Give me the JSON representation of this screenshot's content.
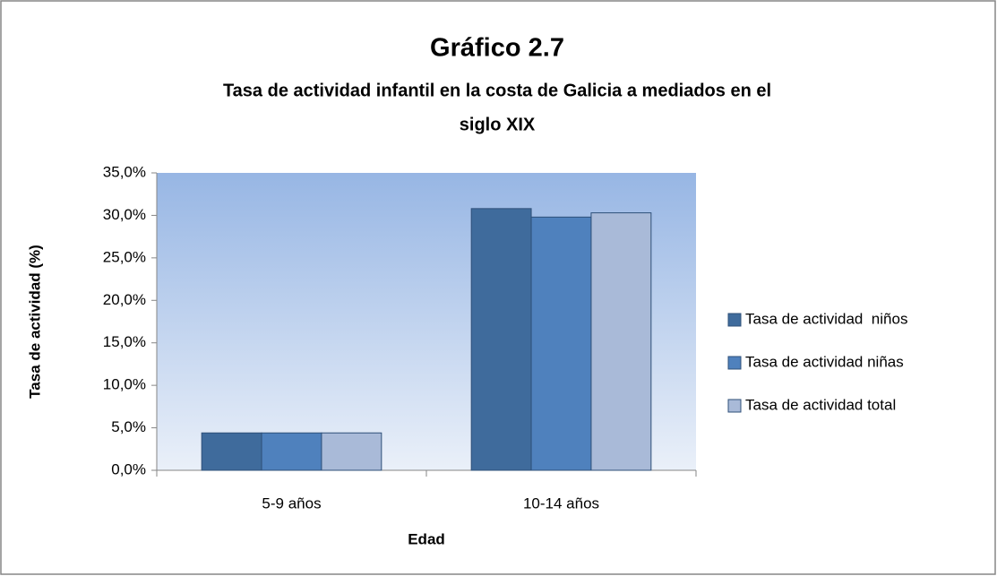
{
  "chart_data": {
    "type": "bar",
    "title": "Gráfico 2.7",
    "subtitle": [
      "Tasa de actividad infantil en la costa de Galicia a mediados en el",
      "siglo XIX"
    ],
    "xlabel": "Edad",
    "ylabel": "Tasa de actividad (%)",
    "categories": [
      "5-9 años",
      "10-14 años"
    ],
    "series": [
      {
        "name": "Tasa de actividad  niños",
        "color": "#3f6b9c",
        "values": [
          4.4,
          30.8
        ]
      },
      {
        "name": "Tasa de actividad niñas",
        "color": "#4f81bd",
        "values": [
          4.4,
          29.8
        ]
      },
      {
        "name": "Tasa de actividad total",
        "color": "#a9bad8",
        "values": [
          4.4,
          30.3
        ]
      }
    ],
    "ylim": [
      0,
      35
    ],
    "yticks": [
      {
        "value": 0,
        "label": "0,0%"
      },
      {
        "value": 5,
        "label": "5,0%"
      },
      {
        "value": 10,
        "label": "10,0%"
      },
      {
        "value": 15,
        "label": "15,0%"
      },
      {
        "value": 20,
        "label": "20,0%"
      },
      {
        "value": 25,
        "label": "25,0%"
      },
      {
        "value": 30,
        "label": "30,0%"
      },
      {
        "value": 35,
        "label": "35,0%"
      }
    ],
    "grid": false,
    "legend": "right"
  }
}
